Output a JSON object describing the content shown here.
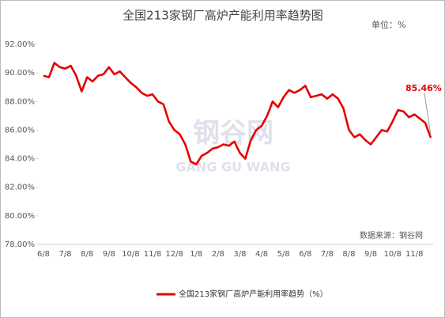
{
  "chart_data": {
    "type": "line",
    "title": "全国213家钢厂高炉产能利用率趋势图",
    "unit_label": "单位：%",
    "source": "数据来源：钢谷网",
    "watermark": [
      "钢谷网",
      "GANG GU WANG"
    ],
    "categories": [
      "6/8",
      null,
      null,
      null,
      "7/8",
      null,
      null,
      null,
      "8/8",
      null,
      null,
      null,
      "9/8",
      null,
      null,
      null,
      "10/8",
      null,
      null,
      null,
      "11/8",
      null,
      null,
      null,
      "12/8",
      null,
      null,
      null,
      "1/8",
      null,
      null,
      null,
      "2/8",
      null,
      null,
      null,
      "3/8",
      null,
      null,
      null,
      "4/8",
      null,
      null,
      null,
      "5/8",
      null,
      null,
      null,
      "6/8",
      null,
      null,
      null,
      "7/8",
      null,
      null,
      null,
      "8/8",
      null,
      null,
      null,
      "9/8",
      null,
      null,
      null,
      "10/8",
      null,
      null,
      null,
      "11/8",
      null,
      null,
      null
    ],
    "series": [
      {
        "name": "全国213家钢厂高炉产能利用率趋势（%）",
        "color": "#e60000",
        "values": [
          89.8,
          89.7,
          90.7,
          90.4,
          90.3,
          90.5,
          89.8,
          88.7,
          89.7,
          89.4,
          89.8,
          89.9,
          90.4,
          89.9,
          90.1,
          89.7,
          89.3,
          89.0,
          88.6,
          88.4,
          88.5,
          88.0,
          87.8,
          86.6,
          86.0,
          85.7,
          85.0,
          83.8,
          83.6,
          84.2,
          84.4,
          84.7,
          84.8,
          85.0,
          84.9,
          85.2,
          84.4,
          84.0,
          85.3,
          86.0,
          86.3,
          87.0,
          88.0,
          87.6,
          88.3,
          88.8,
          88.6,
          88.8,
          89.1,
          88.3,
          88.4,
          88.5,
          88.2,
          88.5,
          88.2,
          87.5,
          86.0,
          85.5,
          85.7,
          85.3,
          85.0,
          85.5,
          86.0,
          85.9,
          86.6,
          87.4,
          87.3,
          86.9,
          87.1,
          86.8,
          86.5,
          85.46
        ],
        "value_labels": [
          null,
          null,
          null,
          null,
          null,
          null,
          null,
          null,
          null,
          null,
          null,
          null,
          null,
          null,
          null,
          null,
          null,
          null,
          null,
          null,
          null,
          null,
          null,
          null,
          null,
          null,
          null,
          null,
          null,
          null,
          null,
          null,
          null,
          null,
          null,
          null,
          null,
          null,
          null,
          null,
          null,
          null,
          null,
          null,
          null,
          null,
          null,
          null,
          null,
          null,
          null,
          null,
          null,
          null,
          null,
          null,
          null,
          null,
          null,
          null,
          null,
          null,
          null,
          null,
          null,
          null,
          null,
          null,
          null,
          null,
          null,
          "85.46%"
        ]
      }
    ],
    "ylim": [
      78,
      92
    ],
    "yticks": [
      {
        "value": 78,
        "label": "78.00%"
      },
      {
        "value": 80,
        "label": "80.00%"
      },
      {
        "value": 82,
        "label": "82.00%"
      },
      {
        "value": 84,
        "label": "84.00%"
      },
      {
        "value": 86,
        "label": "86.00%"
      },
      {
        "value": 88,
        "label": "88.00%"
      },
      {
        "value": 90,
        "label": "90.00%"
      },
      {
        "value": 92,
        "label": "92.00%"
      }
    ],
    "grid": false,
    "legend": "bottom"
  }
}
